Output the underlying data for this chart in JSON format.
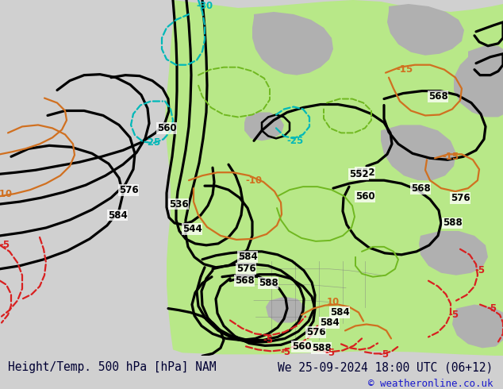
{
  "title_left": "Height/Temp. 500 hPa [hPa] NAM",
  "title_right": "We 25-09-2024 18:00 UTC (06+12)",
  "copyright": "© weatheronline.co.uk",
  "bg_color": "#d0d0d0",
  "land_green_color": "#b8e888",
  "land_gray_color": "#b0b0b0",
  "contour_black_color": "#000000",
  "contour_red_color": "#d82020",
  "contour_orange_color": "#d07020",
  "contour_cyan_color": "#00b8b8",
  "contour_green_color": "#70b820",
  "text_color": "#000033",
  "title_fontsize": 10.5,
  "copyright_fontsize": 9,
  "fig_width": 6.34,
  "fig_height": 4.9,
  "dpi": 100
}
